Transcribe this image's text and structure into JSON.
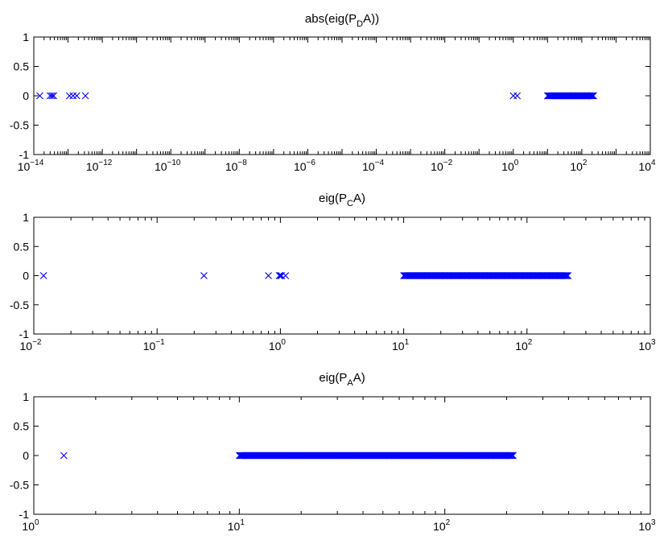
{
  "chart_data": [
    {
      "type": "scatter",
      "xscale": "log",
      "title": {
        "pre": "abs(eig(P",
        "sub": "D",
        "post": "A))"
      },
      "xlim": [
        1e-14,
        10000.0
      ],
      "ylim": [
        -1,
        1
      ],
      "yticks": [
        "1",
        "0.5",
        "0",
        "-0.5",
        "-1"
      ],
      "xtick_labels": [
        {
          "base": "10",
          "exp": "−14"
        },
        {
          "base": "10",
          "exp": "−12"
        },
        {
          "base": "10",
          "exp": "−10"
        },
        {
          "base": "10",
          "exp": "−8"
        },
        {
          "base": "10",
          "exp": "−6"
        },
        {
          "base": "10",
          "exp": "−4"
        },
        {
          "base": "10",
          "exp": "−2"
        },
        {
          "base": "10",
          "exp": "0"
        },
        {
          "base": "10",
          "exp": "2"
        },
        {
          "base": "10",
          "exp": "4"
        }
      ],
      "marker": "x",
      "color": "#0000ff",
      "points_x": [
        1.5e-14,
        3e-14,
        3.4e-14,
        3.8e-14,
        1.1e-13,
        1.4e-13,
        1.8e-13,
        3.2e-13,
        1.0,
        1.3
      ],
      "dense_range": [
        10,
        220
      ],
      "y_value": 0
    },
    {
      "type": "scatter",
      "xscale": "log",
      "title": {
        "pre": "eig(P",
        "sub": "C",
        "post": "A)"
      },
      "xlim": [
        0.01,
        1000
      ],
      "ylim": [
        -1,
        1
      ],
      "yticks": [
        "1",
        "0.5",
        "0",
        "-0.5",
        "-1"
      ],
      "xtick_labels": [
        {
          "base": "10",
          "exp": "−2"
        },
        {
          "base": "10",
          "exp": "−1"
        },
        {
          "base": "10",
          "exp": "0"
        },
        {
          "base": "10",
          "exp": "1"
        },
        {
          "base": "10",
          "exp": "2"
        },
        {
          "base": "10",
          "exp": "3"
        }
      ],
      "marker": "x",
      "color": "#0000ff",
      "points_x": [
        0.012,
        0.24,
        0.8,
        0.98,
        1.0,
        1.02,
        1.1
      ],
      "dense_range": [
        10,
        215
      ],
      "y_value": 0
    },
    {
      "type": "scatter",
      "xscale": "log",
      "title": {
        "pre": "eig(P",
        "sub": "A",
        "post": "A)"
      },
      "xlim": [
        1,
        1000
      ],
      "ylim": [
        -1,
        1
      ],
      "yticks": [
        "1",
        "0.5",
        "0",
        "-0.5",
        "-1"
      ],
      "xtick_labels": [
        {
          "base": "10",
          "exp": "0"
        },
        {
          "base": "10",
          "exp": "1"
        },
        {
          "base": "10",
          "exp": "2"
        },
        {
          "base": "10",
          "exp": "3"
        }
      ],
      "marker": "x",
      "color": "#0000ff",
      "points_x": [
        1.4
      ],
      "dense_range": [
        10,
        215
      ],
      "y_value": 0
    }
  ]
}
